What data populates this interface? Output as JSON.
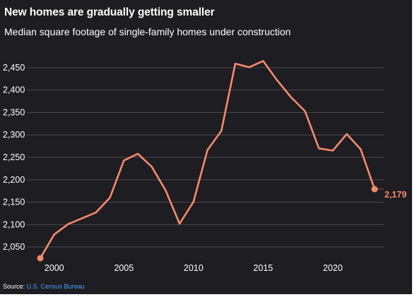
{
  "chart_data": {
    "type": "line",
    "title": "New homes are gradually getting smaller",
    "subtitle": "Median square footage of single-family homes under construction",
    "xlabel": "",
    "ylabel": "",
    "x_ticks": [
      "2000",
      "2005",
      "2010",
      "2015",
      "2020"
    ],
    "y_ticks": [
      "2,050",
      "2,100",
      "2,150",
      "2,200",
      "2,250",
      "2,300",
      "2,350",
      "2,400",
      "2,450"
    ],
    "xlim": [
      1998,
      2024
    ],
    "ylim": [
      2025,
      2475
    ],
    "grid": true,
    "series": [
      {
        "color": "#f58a6c",
        "x": [
          1999,
          2000,
          2001,
          2002,
          2003,
          2004,
          2005,
          2006,
          2007,
          2008,
          2009,
          2010,
          2011,
          2012,
          2013,
          2014,
          2015,
          2016,
          2017,
          2018,
          2019,
          2020,
          2021,
          2022,
          2023
        ],
        "values": [
          2025,
          2078,
          2101,
          2114,
          2127,
          2160,
          2243,
          2258,
          2229,
          2176,
          2102,
          2151,
          2266,
          2309,
          2459,
          2451,
          2465,
          2422,
          2384,
          2353,
          2270,
          2265,
          2302,
          2268,
          2179
        ]
      }
    ],
    "end_label": "2,179"
  },
  "source": {
    "prefix": "Source:",
    "name": "U.S. Census Bureau"
  }
}
